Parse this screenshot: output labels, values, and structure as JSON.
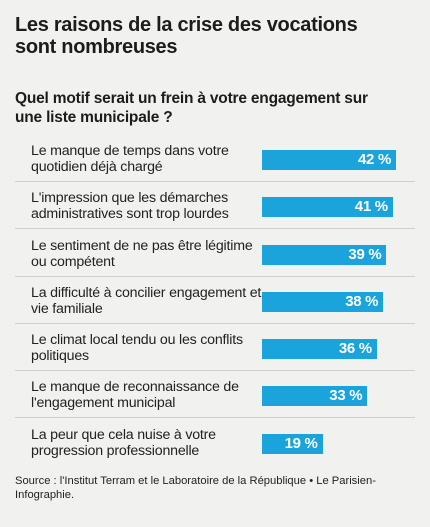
{
  "chart_data": {
    "type": "bar",
    "title": "Les raisons de la crise des vocations sont nombreuses",
    "subtitle": "Quel motif serait un frein à votre engagement sur une liste municipale ?",
    "categories": [
      "Le manque de temps dans votre quotidien déjà chargé",
      "L'impression que les démarches administratives sont trop lourdes",
      "Le sentiment de ne pas être légitime ou compétent",
      "La difficulté à concilier engagement et vie familiale",
      "Le climat local tendu ou les conflits politiques",
      "Le manque de reconnaissance de l'engagement municipal",
      "La peur que cela nuise à votre progression professionnelle"
    ],
    "values": [
      42,
      41,
      39,
      38,
      36,
      33,
      19
    ],
    "value_labels": [
      "42 %",
      "41 %",
      "39 %",
      "38 %",
      "36 %",
      "33 %",
      "19 %"
    ],
    "ylim": [
      0,
      42
    ],
    "bar_color": "#1ba4dc",
    "source": "Source : l'Institut Terram et le Laboratoire de la République • Le Parisien-Infographie."
  }
}
